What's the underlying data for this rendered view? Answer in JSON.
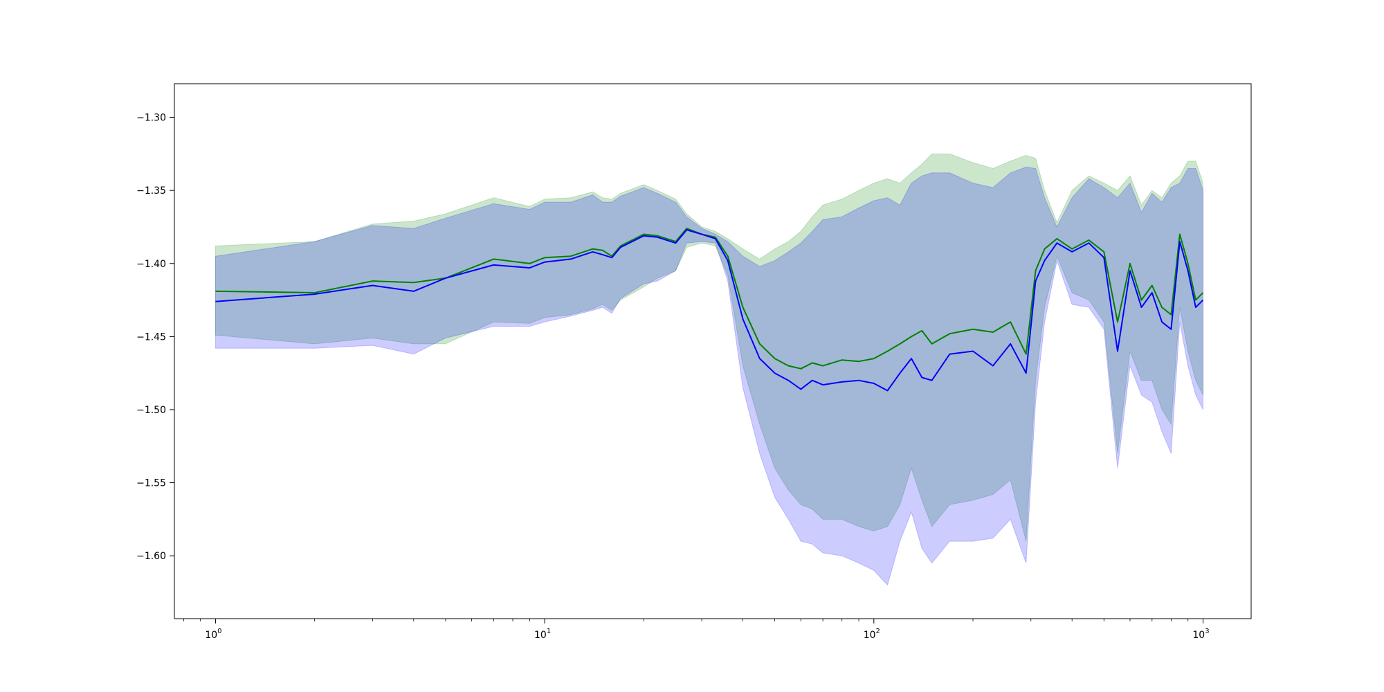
{
  "chart_data": {
    "type": "line",
    "title": "",
    "xlabel": "",
    "ylabel": "",
    "x_scale": "log",
    "xlim": [
      0.75,
      1400
    ],
    "ylim": [
      -1.643,
      -1.277
    ],
    "grid": false,
    "legend": "none",
    "x_ticks": [
      {
        "value": 1,
        "base": "10",
        "exp": "0"
      },
      {
        "value": 10,
        "base": "10",
        "exp": "1"
      },
      {
        "value": 100,
        "base": "10",
        "exp": "2"
      },
      {
        "value": 1000,
        "base": "10",
        "exp": "3"
      }
    ],
    "y_ticks": [
      {
        "value": -1.3,
        "label": "−1.30"
      },
      {
        "value": -1.35,
        "label": "−1.35"
      },
      {
        "value": -1.4,
        "label": "−1.40"
      },
      {
        "value": -1.45,
        "label": "−1.45"
      },
      {
        "value": -1.5,
        "label": "−1.50"
      },
      {
        "value": -1.55,
        "label": "−1.55"
      },
      {
        "value": -1.6,
        "label": "−1.60"
      }
    ],
    "colors": {
      "green": "#008000",
      "blue": "#0000ff",
      "green_band": "rgba(0,128,0,0.2)",
      "blue_band": "rgba(0,0,255,0.2)"
    },
    "series": [
      {
        "color": "#008000",
        "x": [
          1,
          2,
          3,
          4,
          5,
          7,
          9,
          10,
          12,
          14,
          15,
          16,
          17,
          20,
          22,
          25,
          27,
          30,
          33,
          36,
          40,
          45,
          50,
          55,
          60,
          65,
          70,
          80,
          90,
          100,
          110,
          120,
          130,
          140,
          150,
          170,
          200,
          230,
          260,
          290,
          310,
          330,
          360,
          400,
          450,
          500,
          550,
          600,
          650,
          700,
          750,
          800,
          850,
          900,
          950,
          1000
        ],
        "y": [
          -1.419,
          -1.42,
          -1.412,
          -1.413,
          -1.41,
          -1.397,
          -1.4,
          -1.396,
          -1.395,
          -1.39,
          -1.391,
          -1.395,
          -1.388,
          -1.38,
          -1.381,
          -1.385,
          -1.376,
          -1.38,
          -1.382,
          -1.395,
          -1.43,
          -1.455,
          -1.465,
          -1.47,
          -1.472,
          -1.468,
          -1.47,
          -1.466,
          -1.467,
          -1.465,
          -1.46,
          -1.455,
          -1.45,
          -1.446,
          -1.455,
          -1.448,
          -1.445,
          -1.447,
          -1.44,
          -1.462,
          -1.405,
          -1.39,
          -1.383,
          -1.39,
          -1.384,
          -1.392,
          -1.44,
          -1.4,
          -1.425,
          -1.415,
          -1.43,
          -1.435,
          -1.38,
          -1.4,
          -1.425,
          -1.42
        ],
        "upper": [
          -1.388,
          -1.385,
          -1.373,
          -1.371,
          -1.366,
          -1.355,
          -1.361,
          -1.356,
          -1.355,
          -1.351,
          -1.355,
          -1.356,
          -1.352,
          -1.346,
          -1.35,
          -1.356,
          -1.366,
          -1.375,
          -1.378,
          -1.383,
          -1.39,
          -1.397,
          -1.39,
          -1.385,
          -1.378,
          -1.368,
          -1.36,
          -1.356,
          -1.35,
          -1.345,
          -1.342,
          -1.345,
          -1.338,
          -1.332,
          -1.325,
          -1.325,
          -1.331,
          -1.335,
          -1.33,
          -1.326,
          -1.328,
          -1.35,
          -1.372,
          -1.35,
          -1.34,
          -1.345,
          -1.35,
          -1.34,
          -1.36,
          -1.35,
          -1.355,
          -1.345,
          -1.34,
          -1.33,
          -1.33,
          -1.345
        ],
        "lower": [
          -1.449,
          -1.455,
          -1.451,
          -1.455,
          -1.455,
          -1.44,
          -1.441,
          -1.437,
          -1.435,
          -1.431,
          -1.428,
          -1.432,
          -1.425,
          -1.416,
          -1.41,
          -1.405,
          -1.389,
          -1.386,
          -1.388,
          -1.408,
          -1.47,
          -1.51,
          -1.54,
          -1.555,
          -1.565,
          -1.568,
          -1.575,
          -1.575,
          -1.58,
          -1.583,
          -1.58,
          -1.565,
          -1.54,
          -1.562,
          -1.58,
          -1.565,
          -1.562,
          -1.558,
          -1.548,
          -1.59,
          -1.48,
          -1.43,
          -1.395,
          -1.42,
          -1.425,
          -1.44,
          -1.53,
          -1.46,
          -1.48,
          -1.48,
          -1.5,
          -1.51,
          -1.43,
          -1.46,
          -1.48,
          -1.49
        ]
      },
      {
        "color": "#0000ff",
        "x": [
          1,
          2,
          3,
          4,
          5,
          7,
          9,
          10,
          12,
          14,
          15,
          16,
          17,
          20,
          22,
          25,
          27,
          30,
          33,
          36,
          40,
          45,
          50,
          55,
          60,
          65,
          70,
          80,
          90,
          100,
          110,
          120,
          130,
          140,
          150,
          170,
          200,
          230,
          260,
          290,
          310,
          330,
          360,
          400,
          450,
          500,
          550,
          600,
          650,
          700,
          750,
          800,
          850,
          900,
          950,
          1000
        ],
        "y": [
          -1.426,
          -1.421,
          -1.415,
          -1.419,
          -1.41,
          -1.401,
          -1.403,
          -1.399,
          -1.397,
          -1.392,
          -1.394,
          -1.396,
          -1.389,
          -1.381,
          -1.382,
          -1.386,
          -1.377,
          -1.38,
          -1.383,
          -1.398,
          -1.438,
          -1.465,
          -1.475,
          -1.48,
          -1.486,
          -1.48,
          -1.483,
          -1.481,
          -1.48,
          -1.482,
          -1.487,
          -1.475,
          -1.465,
          -1.478,
          -1.48,
          -1.462,
          -1.46,
          -1.47,
          -1.455,
          -1.475,
          -1.412,
          -1.398,
          -1.386,
          -1.392,
          -1.386,
          -1.396,
          -1.46,
          -1.405,
          -1.43,
          -1.42,
          -1.44,
          -1.445,
          -1.385,
          -1.405,
          -1.43,
          -1.425
        ],
        "upper": [
          -1.395,
          -1.385,
          -1.374,
          -1.376,
          -1.369,
          -1.359,
          -1.363,
          -1.358,
          -1.358,
          -1.353,
          -1.358,
          -1.358,
          -1.354,
          -1.348,
          -1.352,
          -1.358,
          -1.368,
          -1.376,
          -1.38,
          -1.385,
          -1.395,
          -1.402,
          -1.398,
          -1.392,
          -1.386,
          -1.378,
          -1.37,
          -1.368,
          -1.362,
          -1.357,
          -1.355,
          -1.36,
          -1.345,
          -1.34,
          -1.338,
          -1.338,
          -1.345,
          -1.348,
          -1.338,
          -1.334,
          -1.335,
          -1.355,
          -1.375,
          -1.355,
          -1.342,
          -1.348,
          -1.355,
          -1.345,
          -1.365,
          -1.352,
          -1.358,
          -1.348,
          -1.345,
          -1.335,
          -1.335,
          -1.35
        ],
        "lower": [
          -1.458,
          -1.458,
          -1.456,
          -1.462,
          -1.451,
          -1.443,
          -1.443,
          -1.44,
          -1.436,
          -1.432,
          -1.43,
          -1.434,
          -1.424,
          -1.414,
          -1.412,
          -1.405,
          -1.386,
          -1.385,
          -1.386,
          -1.412,
          -1.485,
          -1.53,
          -1.56,
          -1.575,
          -1.59,
          -1.592,
          -1.598,
          -1.6,
          -1.605,
          -1.61,
          -1.62,
          -1.59,
          -1.57,
          -1.595,
          -1.605,
          -1.59,
          -1.59,
          -1.588,
          -1.575,
          -1.605,
          -1.495,
          -1.44,
          -1.398,
          -1.428,
          -1.43,
          -1.445,
          -1.54,
          -1.47,
          -1.49,
          -1.495,
          -1.515,
          -1.53,
          -1.44,
          -1.47,
          -1.49,
          -1.5
        ]
      }
    ]
  }
}
